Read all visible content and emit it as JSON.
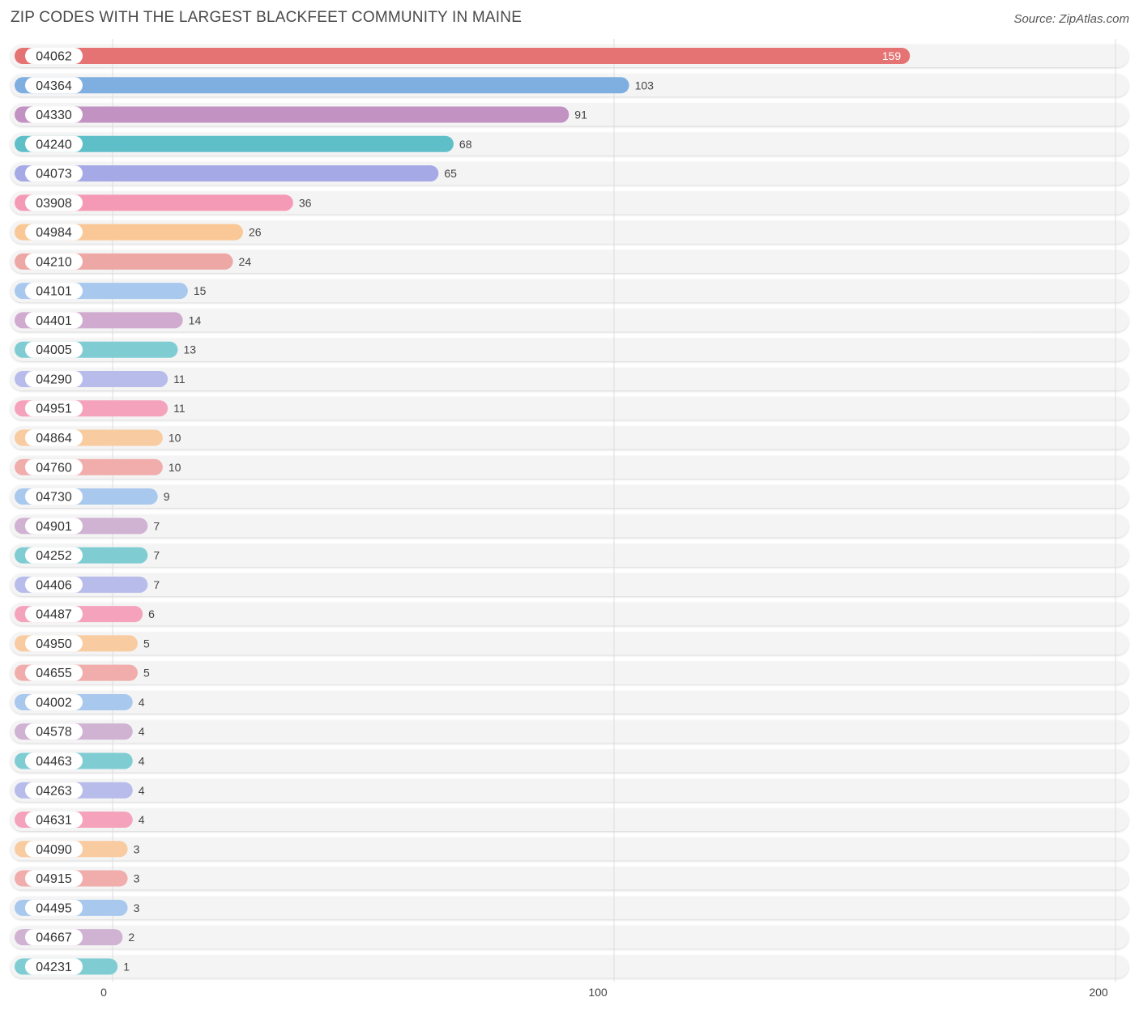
{
  "title": "ZIP CODES WITH THE LARGEST BLACKFEET COMMUNITY IN MAINE",
  "source": "Source: ZipAtlas.com",
  "chart_data": {
    "type": "bar",
    "orientation": "horizontal",
    "title": "ZIP CODES WITH THE LARGEST BLACKFEET COMMUNITY IN MAINE",
    "xlim": [
      0,
      200
    ],
    "ticks": [
      0,
      100,
      200
    ],
    "tick_labels": [
      "0",
      "100",
      "200"
    ],
    "grid": true,
    "categories": [
      "04062",
      "04364",
      "04330",
      "04240",
      "04073",
      "03908",
      "04984",
      "04210",
      "04101",
      "04401",
      "04005",
      "04290",
      "04951",
      "04864",
      "04760",
      "04730",
      "04901",
      "04252",
      "04406",
      "04487",
      "04950",
      "04655",
      "04002",
      "04578",
      "04463",
      "04263",
      "04631",
      "04090",
      "04915",
      "04495",
      "04667",
      "04231"
    ],
    "values": [
      159,
      103,
      91,
      68,
      65,
      36,
      26,
      24,
      15,
      14,
      13,
      11,
      11,
      10,
      10,
      9,
      7,
      7,
      7,
      6,
      5,
      5,
      4,
      4,
      4,
      4,
      4,
      3,
      3,
      3,
      2,
      1
    ],
    "value_labels": [
      "159",
      "103",
      "91",
      "68",
      "65",
      "36",
      "26",
      "24",
      "15",
      "14",
      "13",
      "11",
      "11",
      "10",
      "10",
      "9",
      "7",
      "7",
      "7",
      "6",
      "5",
      "5",
      "4",
      "4",
      "4",
      "4",
      "4",
      "3",
      "3",
      "3",
      "2",
      "1"
    ],
    "colors": [
      "#e57373",
      "#7faee0",
      "#c192c2",
      "#5ebfc9",
      "#a5aae6",
      "#f59ab6",
      "#f9c896",
      "#eda8a5",
      "#a8c8ee",
      "#d1aad0",
      "#7fcdd3",
      "#b7bceb",
      "#f5a3bc",
      "#f9cba0",
      "#f0adab",
      "#a8c8ee",
      "#d0b2d2",
      "#7fcdd3",
      "#b7bceb",
      "#f5a3bc",
      "#f9cba0",
      "#f0adab",
      "#a8c8ee",
      "#d0b2d2",
      "#7fcdd3",
      "#b7bceb",
      "#f5a3bc",
      "#f9cba0",
      "#f0adab",
      "#a8c8ee",
      "#d0b2d2",
      "#7fcdd3"
    ]
  }
}
